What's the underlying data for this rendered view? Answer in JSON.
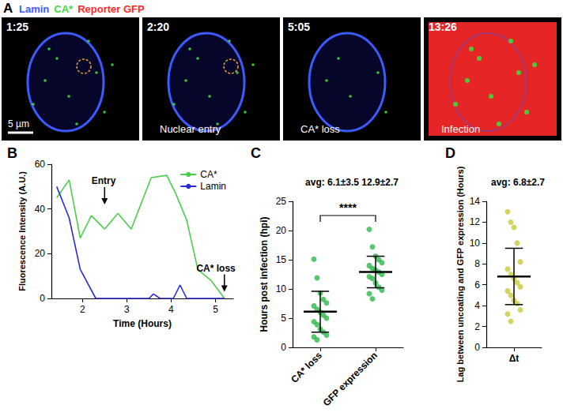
{
  "image_panel": {
    "title": "A",
    "channels": [
      {
        "name": "Lamin",
        "color": "#3b5bff"
      },
      {
        "name": "CA*",
        "color": "#3ddc3d"
      },
      {
        "name": "Reporter GFP",
        "color": "#ff2a2a"
      }
    ],
    "frames": [
      {
        "time": "1:25"
      },
      {
        "time": "2:20",
        "label": "Nuclear entry"
      },
      {
        "time": "5:05",
        "label": "CA* loss"
      },
      {
        "time": "13:26",
        "label": "Infection"
      }
    ],
    "scale_bar": "5 µm"
  },
  "chart_data": [
    {
      "type": "line",
      "title": "B",
      "xlabel": "Time (Hours)",
      "ylabel": "Fluorescence Intensity (A.U.)",
      "xlim": [
        1.3,
        5.4
      ],
      "xticks": [
        2,
        3,
        4,
        5
      ],
      "ylim": [
        0,
        60
      ],
      "yticks": [
        0,
        20,
        40,
        60
      ],
      "grid": false,
      "legend": "upper right",
      "series": [
        {
          "name": "CA*",
          "color": "#4ccc4c",
          "x": [
            1.42,
            1.7,
            1.95,
            2.2,
            2.5,
            2.8,
            3.1,
            3.55,
            3.9,
            4.1,
            4.35,
            4.6,
            4.9,
            5.2
          ],
          "values": [
            45,
            53,
            27,
            37,
            31,
            38,
            31,
            54,
            55,
            47,
            35,
            13,
            8,
            0
          ]
        },
        {
          "name": "Lamin",
          "color": "#2b2bd9",
          "x": [
            1.42,
            1.7,
            1.95,
            2.3,
            2.6,
            2.9,
            3.2,
            3.5,
            3.6,
            3.75,
            4.05,
            4.2,
            4.35,
            4.65,
            4.95,
            5.2
          ],
          "values": [
            50,
            36,
            13,
            0,
            0,
            0,
            0,
            0,
            2,
            0,
            0,
            6,
            0,
            0,
            0,
            0
          ]
        }
      ],
      "annotations": [
        {
          "text": "Entry",
          "x": 2.5,
          "y": 42
        },
        {
          "text": "CA* loss",
          "x": 5.2,
          "y": 3
        }
      ]
    },
    {
      "type": "scatter",
      "title": "C",
      "subtitle": "avg: 6.1±3.5 12.9±2.7",
      "ylabel": "Hours post infection (hpi)",
      "categories": [
        "CA* loss",
        "GFP expression"
      ],
      "values": [
        [
          15.1,
          11.9,
          9.3,
          8.2,
          7.6,
          7.1,
          6.5,
          6.0,
          5.5,
          5.0,
          4.4,
          3.9,
          3.1,
          2.6,
          2.1,
          1.8,
          1.3
        ],
        [
          20.2,
          17.2,
          15.6,
          15.0,
          14.5,
          14.0,
          13.5,
          13.2,
          12.9,
          12.5,
          12.1,
          11.8,
          11.0,
          10.3,
          9.8,
          9.2,
          8.3
        ]
      ],
      "color": "#2db84a",
      "ylim": [
        0,
        25
      ],
      "yticks": [
        0,
        5,
        10,
        15,
        20,
        25
      ],
      "error": {
        "mean": [
          6.1,
          12.9
        ],
        "sd": [
          3.5,
          2.7
        ]
      },
      "annotations": [
        "****"
      ],
      "grid": false
    },
    {
      "type": "scatter",
      "title": "D",
      "subtitle": "avg: 6.8±2.7",
      "ylabel": "Lag between uncoating and GFP expression (Hours)",
      "categories": [
        "Δt"
      ],
      "values": [
        [
          13,
          12,
          11.5,
          10,
          8.2,
          7.5,
          7,
          6.6,
          6.2,
          5.8,
          5.4,
          5,
          4.5,
          4.2,
          3.6,
          3.2,
          2.5
        ]
      ],
      "color": "#c9c93a",
      "ylim": [
        0,
        14
      ],
      "yticks": [
        0,
        2,
        4,
        6,
        8,
        10,
        12,
        14
      ],
      "error": {
        "mean": [
          6.8
        ],
        "sd": [
          2.7
        ]
      },
      "grid": false
    }
  ]
}
